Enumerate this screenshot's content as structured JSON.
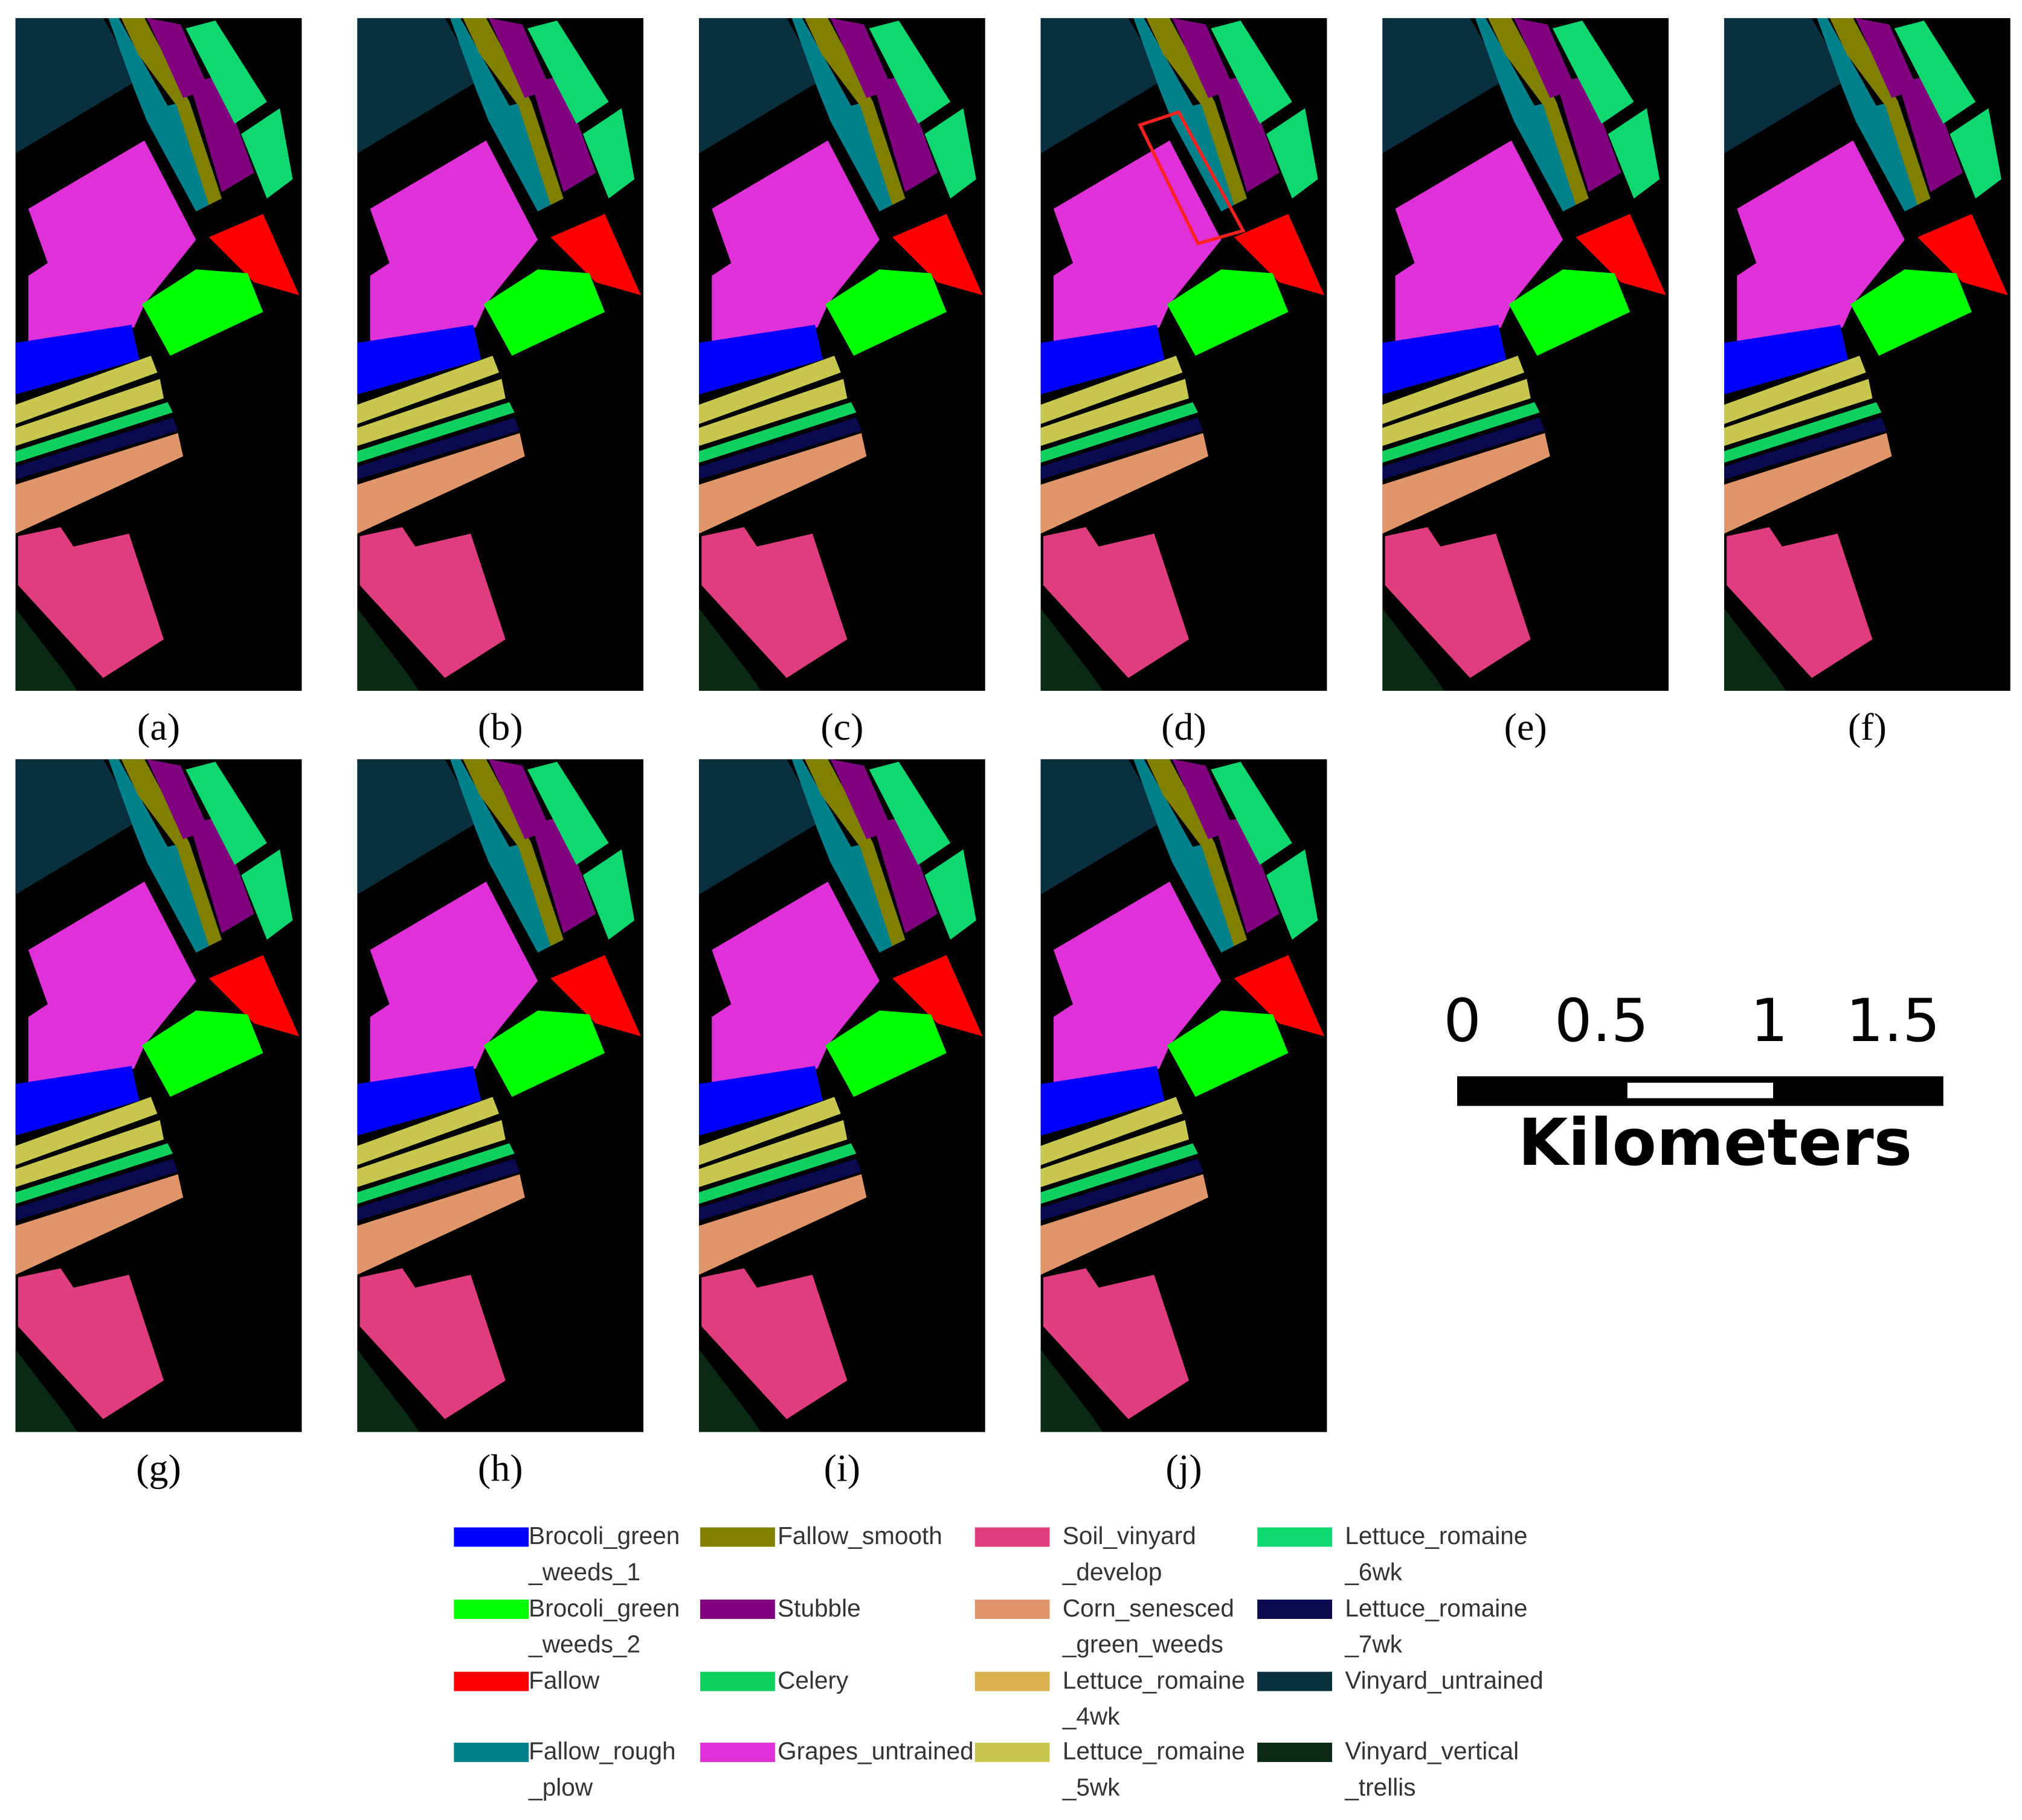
{
  "panels": [
    "(a)",
    "(b)",
    "(c)",
    "(d)",
    "(e)",
    "(f)",
    "(g)",
    "(h)",
    "(i)",
    "(j)"
  ],
  "scale_bar": {
    "ticks": [
      "0",
      "0.5",
      "1",
      "1.5"
    ],
    "unit": "Kilometers"
  },
  "legend": {
    "items": [
      {
        "label": [
          "Brocoli_green",
          "_weeds_1"
        ],
        "color": "#0000ff"
      },
      {
        "label": [
          "Brocoli_green",
          "_weeds_2"
        ],
        "color": "#00ff00"
      },
      {
        "label": [
          "Fallow"
        ],
        "color": "#ff0000"
      },
      {
        "label": [
          "Fallow_rough",
          "_plow"
        ],
        "color": "#00808a"
      },
      {
        "label": [
          "Fallow_smooth"
        ],
        "color": "#808000"
      },
      {
        "label": [
          "Stubble"
        ],
        "color": "#800080"
      },
      {
        "label": [
          "Celery"
        ],
        "color": "#10d060"
      },
      {
        "label": [
          "Grapes_untrained"
        ],
        "color": "#e030d8"
      },
      {
        "label": [
          "Soil_vinyard",
          "_develop"
        ],
        "color": "#e03c80"
      },
      {
        "label": [
          "Corn_senesced",
          "_green_weeds"
        ],
        "color": "#e0966a"
      },
      {
        "label": [
          "Lettuce_romaine",
          "_4wk"
        ],
        "color": "#d8b050"
      },
      {
        "label": [
          "Lettuce_romaine",
          "_5wk"
        ],
        "color": "#c8c850"
      },
      {
        "label": [
          "Lettuce_romaine",
          "_6wk"
        ],
        "color": "#10d870"
      },
      {
        "label": [
          "Lettuce_romaine",
          "_7wk"
        ],
        "color": "#0a0a50"
      },
      {
        "label": [
          "Vinyard_untrained"
        ],
        "color": "#0a3040"
      },
      {
        "label": [
          "Vinyard_vertical",
          "_trellis"
        ],
        "color": "#0a2a14"
      }
    ]
  }
}
